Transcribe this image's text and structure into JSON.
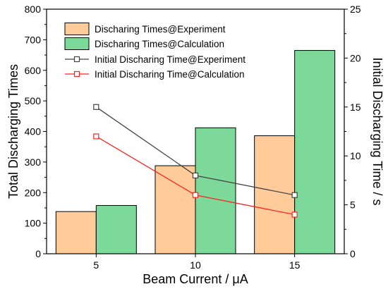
{
  "chart_data": {
    "type": "bar",
    "categories": [
      "5",
      "10",
      "15"
    ],
    "xlabel": "Beam Current / μA",
    "ylabel": "Total Discharging Times",
    "y2label": "Initial Discharging Time / s",
    "ylim": [
      0,
      800
    ],
    "y2lim": [
      0,
      25
    ],
    "yticks": [
      "0",
      "100",
      "200",
      "300",
      "400",
      "500",
      "600",
      "700",
      "800"
    ],
    "y2ticks": [
      "0",
      "5",
      "10",
      "15",
      "20",
      "25"
    ],
    "legend_position": "top-left",
    "bar_series": [
      {
        "name": "Discharing Times@Experiment",
        "values": [
          138,
          288,
          386
        ],
        "color": "#FFCC99",
        "edge": "#000000"
      },
      {
        "name": "Discharing Times@Calculation",
        "values": [
          158,
          412,
          665
        ],
        "color": "#7DD99A",
        "edge": "#000000"
      }
    ],
    "line_series": [
      {
        "name": "Initial Discharing Time@Experiment",
        "values": [
          15,
          8,
          6
        ],
        "color": "#444444",
        "marker": "open-square",
        "axis": "right"
      },
      {
        "name": "Initial Discharing Time@Calculation",
        "values": [
          12,
          6,
          4
        ],
        "color": "#FF2222",
        "marker": "open-square",
        "axis": "right"
      }
    ]
  }
}
